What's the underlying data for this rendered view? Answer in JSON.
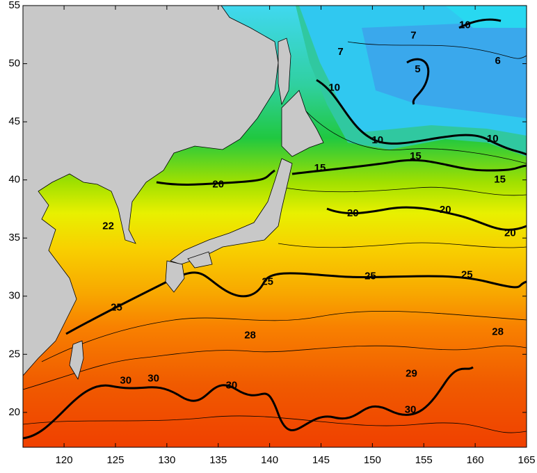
{
  "map": {
    "xlim": [
      116,
      165
    ],
    "ylim": [
      17,
      55
    ],
    "xticks": [
      120,
      125,
      130,
      135,
      140,
      145,
      150,
      155,
      160,
      165
    ],
    "yticks": [
      20,
      25,
      30,
      35,
      40,
      45,
      50,
      55
    ],
    "contour_labels": [
      {
        "text": "10",
        "lon": 159.0,
        "lat": 53.3
      },
      {
        "text": "7",
        "lon": 154.0,
        "lat": 52.4
      },
      {
        "text": "7",
        "lon": 146.9,
        "lat": 51.0
      },
      {
        "text": "6",
        "lon": 162.2,
        "lat": 50.2
      },
      {
        "text": "5",
        "lon": 154.4,
        "lat": 49.5
      },
      {
        "text": "10",
        "lon": 146.3,
        "lat": 47.9
      },
      {
        "text": "10",
        "lon": 150.5,
        "lat": 43.4
      },
      {
        "text": "10",
        "lon": 161.7,
        "lat": 43.5
      },
      {
        "text": "15",
        "lon": 144.9,
        "lat": 41.0
      },
      {
        "text": "15",
        "lon": 154.2,
        "lat": 42.0
      },
      {
        "text": "15",
        "lon": 162.4,
        "lat": 40.0
      },
      {
        "text": "20",
        "lon": 135.0,
        "lat": 39.6
      },
      {
        "text": "20",
        "lon": 148.1,
        "lat": 37.1
      },
      {
        "text": "20",
        "lon": 157.1,
        "lat": 37.4
      },
      {
        "text": "20",
        "lon": 163.4,
        "lat": 35.4
      },
      {
        "text": "22",
        "lon": 124.3,
        "lat": 36.0
      },
      {
        "text": "25",
        "lon": 125.1,
        "lat": 29.0
      },
      {
        "text": "25",
        "lon": 139.8,
        "lat": 31.2
      },
      {
        "text": "25",
        "lon": 149.8,
        "lat": 31.7
      },
      {
        "text": "25",
        "lon": 159.2,
        "lat": 31.8
      },
      {
        "text": "28",
        "lon": 138.1,
        "lat": 26.6
      },
      {
        "text": "28",
        "lon": 162.2,
        "lat": 26.9
      },
      {
        "text": "29",
        "lon": 153.8,
        "lat": 23.3
      },
      {
        "text": "30",
        "lon": 126.0,
        "lat": 22.7
      },
      {
        "text": "30",
        "lon": 128.7,
        "lat": 22.9
      },
      {
        "text": "30",
        "lon": 136.3,
        "lat": 22.3
      },
      {
        "text": "30",
        "lon": 153.7,
        "lat": 20.2
      }
    ]
  }
}
